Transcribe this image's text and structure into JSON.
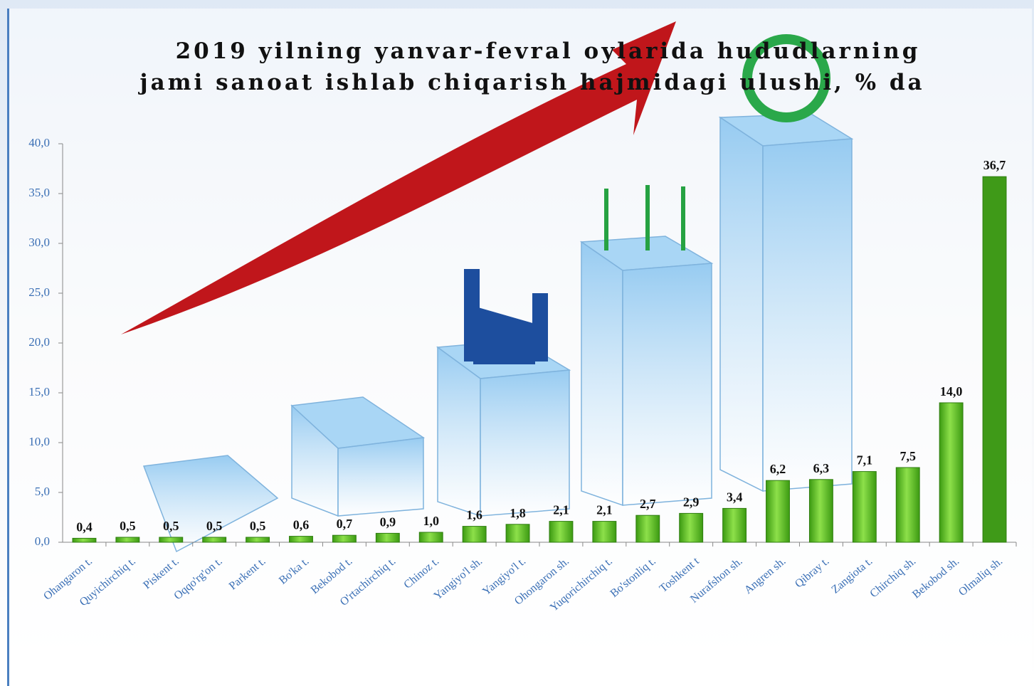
{
  "chart_data": {
    "type": "bar",
    "title": [
      "2019 yilning yanvar-fevral oylarida hududlarning",
      "jami sanoat ishlab chiqarish hajmidagi ulushi, % da"
    ],
    "categories": [
      "Ohangaron t.",
      "Quyichirchiq t.",
      "Piskent t.",
      "Oqqo'rg'on t.",
      "Parkent t.",
      "Bo'ka t.",
      "Bekobod t.",
      "O'rtachirchiq t.",
      "Chinoz t.",
      "Yangiyo'l sh.",
      "Yangiyo'l t.",
      "Ohongaron sh.",
      "Yuqorichirchiq t.",
      "Bo'stonliq t.",
      "Toshkent t",
      "Nurafshon sh.",
      "Angren sh.",
      "Qibray t.",
      "Zangiota t.",
      "Chirchiq sh.",
      "Bekobod sh.",
      "Olmaliq sh."
    ],
    "values": [
      0.4,
      0.5,
      0.5,
      0.5,
      0.5,
      0.6,
      0.7,
      0.9,
      1.0,
      1.6,
      1.8,
      2.1,
      2.1,
      2.7,
      2.9,
      3.4,
      6.2,
      6.3,
      7.1,
      7.5,
      14.0,
      36.7
    ],
    "value_labels": [
      "0,4",
      "0,5",
      "0,5",
      "0,5",
      "0,5",
      "0,6",
      "0,7",
      "0,9",
      "1,0",
      "1,6",
      "1,8",
      "2,1",
      "2,1",
      "2,7",
      "2,9",
      "3,4",
      "6,2",
      "6,3",
      "7,1",
      "7,5",
      "14,0",
      "36,7"
    ],
    "color": "#5cc021",
    "ylim": [
      0,
      40
    ],
    "yticks": [
      {
        "value": 0,
        "label": "0,0"
      },
      {
        "value": 5,
        "label": "5,0"
      },
      {
        "value": 10,
        "label": "10,0"
      },
      {
        "value": 15,
        "label": "15,0"
      },
      {
        "value": 20,
        "label": "20,0"
      },
      {
        "value": 25,
        "label": "25,0"
      },
      {
        "value": 30,
        "label": "30,0"
      },
      {
        "value": 35,
        "label": "35,0"
      },
      {
        "value": 40,
        "label": "40,0"
      }
    ]
  }
}
